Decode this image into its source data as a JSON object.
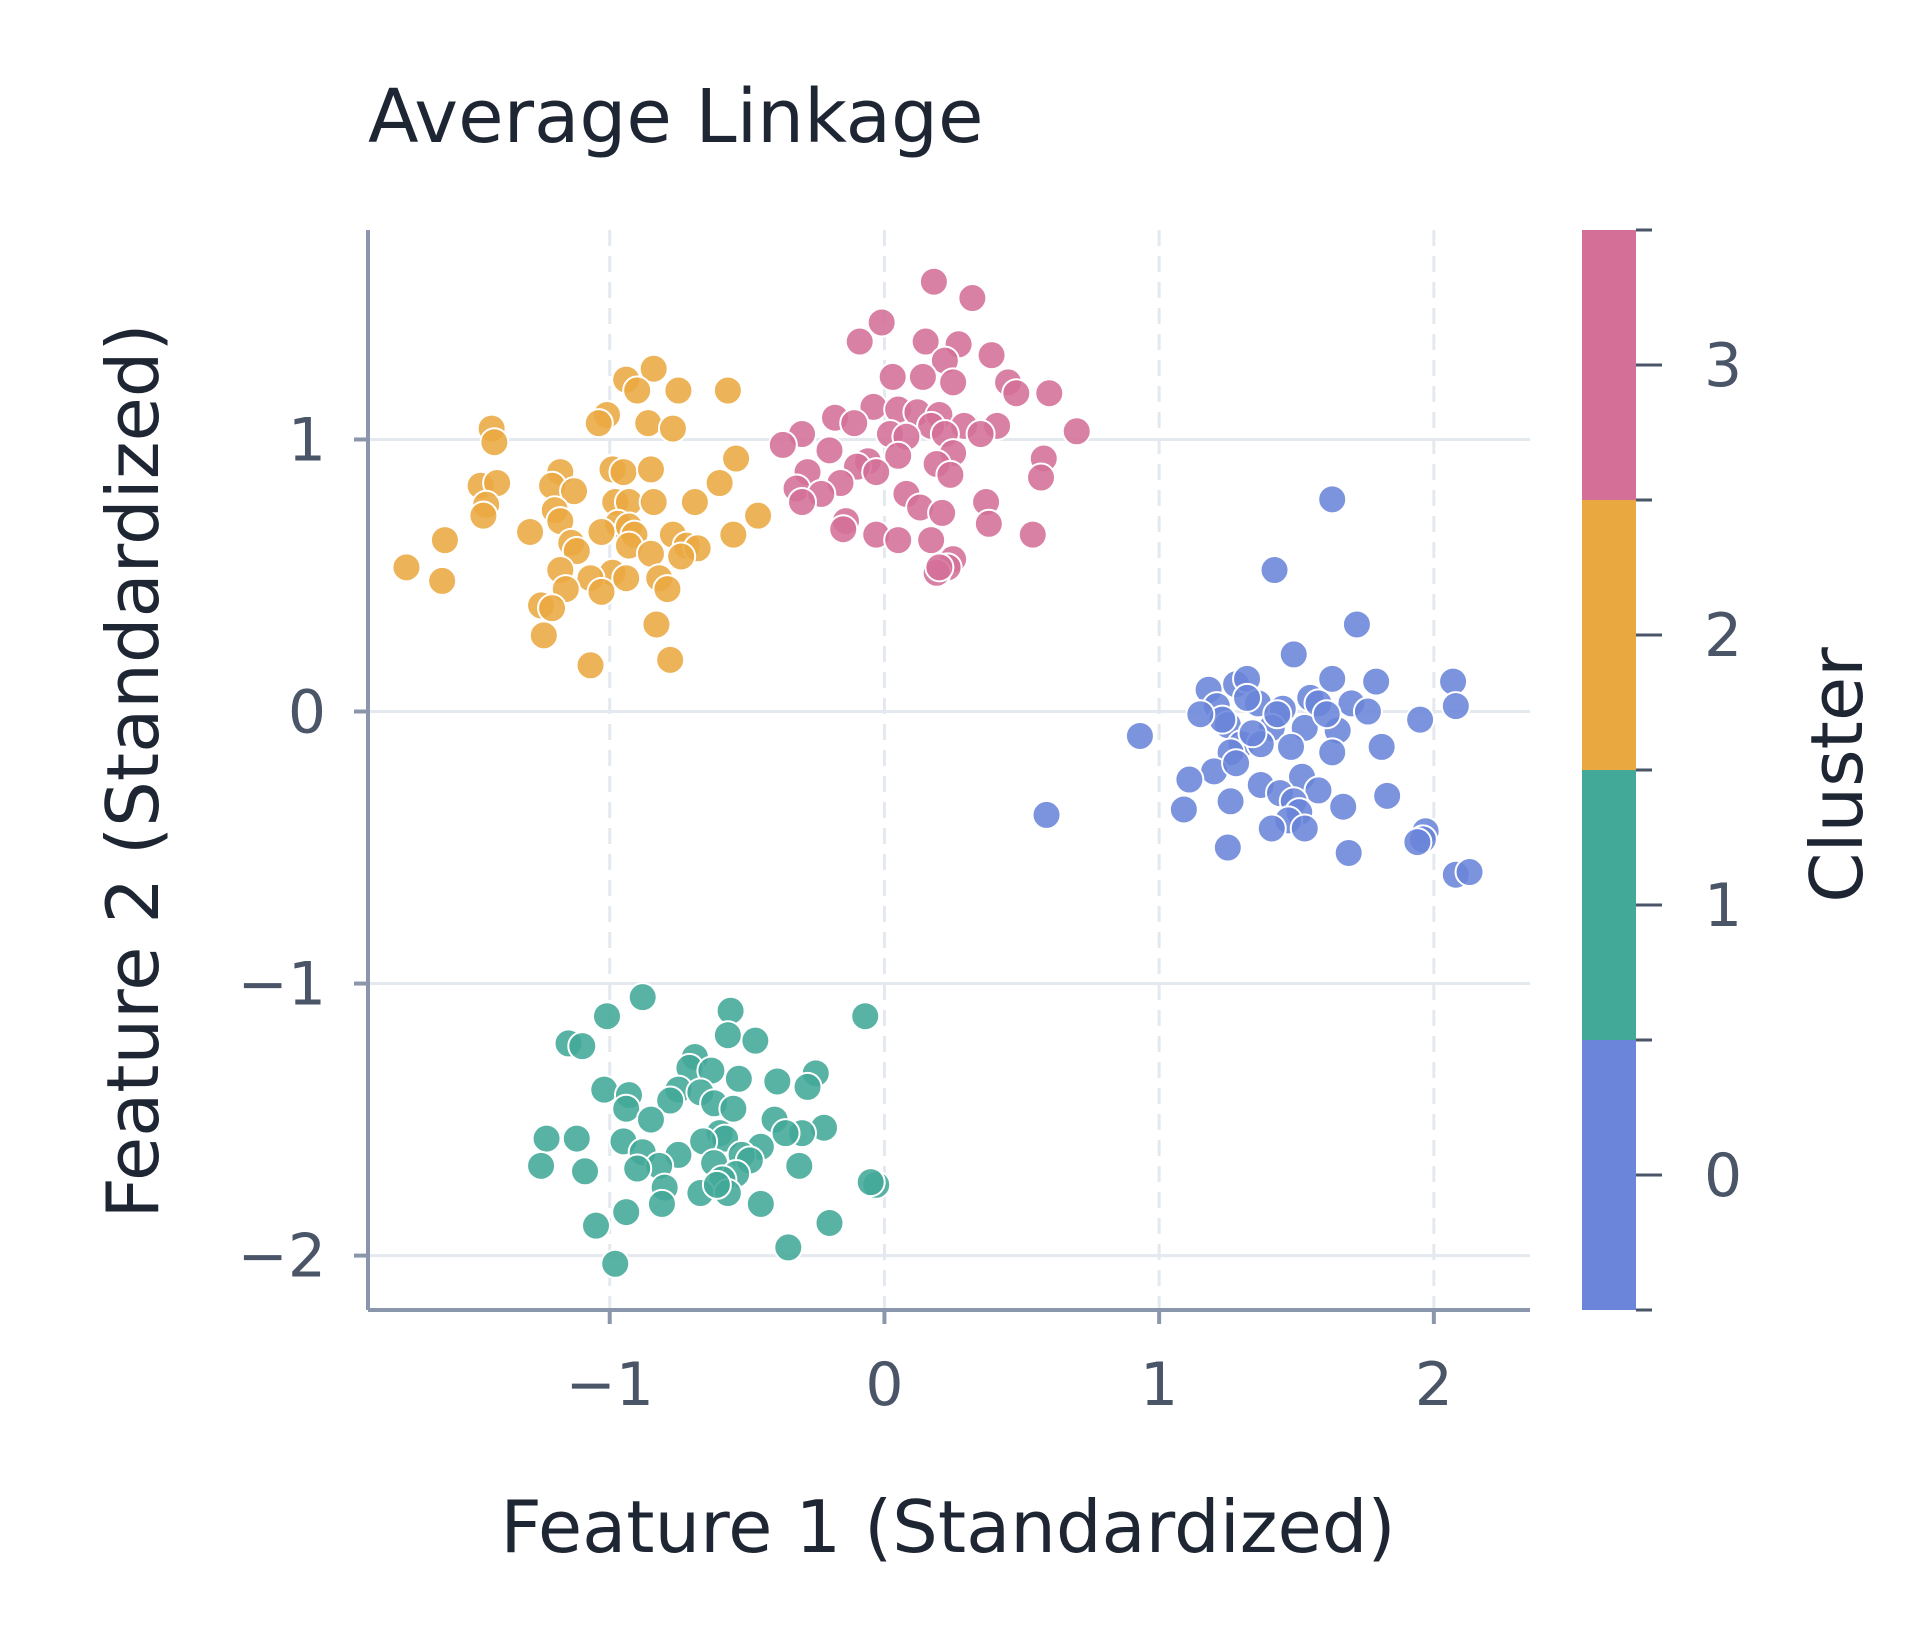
{
  "chart_data": {
    "type": "scatter",
    "title": "Average Linkage",
    "xlabel": "Feature 1 (Standardized)",
    "ylabel": "Feature 2 (Standardized)",
    "xlim": [
      -1.88,
      2.35
    ],
    "ylim": [
      -2.2,
      1.77
    ],
    "x_ticks": [
      -1,
      0,
      1,
      2
    ],
    "x_tick_labels": [
      "−1",
      "0",
      "1",
      "2"
    ],
    "y_ticks": [
      -2,
      -1,
      0,
      1
    ],
    "y_tick_labels": [
      "−2",
      "−1",
      "0",
      "1"
    ],
    "grid": {
      "horizontal": "solid",
      "vertical": "dashed"
    },
    "colorbar": {
      "label": "Cluster",
      "range": [
        -0.5,
        3.5
      ],
      "ticks": [
        0,
        1,
        2,
        3
      ],
      "tick_labels": [
        "0",
        "1",
        "2",
        "3"
      ],
      "colors": [
        "#6a85d9",
        "#42a898",
        "#eaa841",
        "#d46f98"
      ]
    },
    "series": [
      {
        "cluster": 0,
        "color": "#6a85d9",
        "points": [
          [
            1.63,
            0.78
          ],
          [
            1.42,
            0.52
          ],
          [
            1.72,
            0.32
          ],
          [
            1.49,
            0.21
          ],
          [
            1.28,
            0.1
          ],
          [
            1.18,
            0.08
          ],
          [
            1.32,
            0.12
          ],
          [
            1.55,
            0.05
          ],
          [
            1.63,
            0.12
          ],
          [
            1.79,
            0.11
          ],
          [
            2.07,
            0.11
          ],
          [
            2.08,
            0.02
          ],
          [
            1.95,
            -0.03
          ],
          [
            1.21,
            0.02
          ],
          [
            1.36,
            0.03
          ],
          [
            1.45,
            0.01
          ],
          [
            1.58,
            0.03
          ],
          [
            1.7,
            0.03
          ],
          [
            1.76,
            0.0
          ],
          [
            1.25,
            -0.05
          ],
          [
            1.41,
            -0.06
          ],
          [
            1.53,
            -0.06
          ],
          [
            1.65,
            -0.07
          ],
          [
            1.3,
            -0.12
          ],
          [
            1.37,
            -0.12
          ],
          [
            1.48,
            -0.13
          ],
          [
            0.93,
            -0.09
          ],
          [
            1.26,
            -0.15
          ],
          [
            1.81,
            -0.13
          ],
          [
            1.63,
            -0.15
          ],
          [
            1.2,
            -0.22
          ],
          [
            1.28,
            -0.19
          ],
          [
            1.11,
            -0.25
          ],
          [
            1.37,
            -0.27
          ],
          [
            1.52,
            -0.24
          ],
          [
            1.58,
            -0.29
          ],
          [
            1.44,
            -0.3
          ],
          [
            1.49,
            -0.33
          ],
          [
            1.51,
            -0.37
          ],
          [
            1.83,
            -0.31
          ],
          [
            1.67,
            -0.35
          ],
          [
            1.26,
            -0.33
          ],
          [
            1.09,
            -0.36
          ],
          [
            1.47,
            -0.4
          ],
          [
            1.53,
            -0.43
          ],
          [
            1.41,
            -0.43
          ],
          [
            1.97,
            -0.44
          ],
          [
            1.96,
            -0.47
          ],
          [
            1.94,
            -0.48
          ],
          [
            1.25,
            -0.5
          ],
          [
            1.69,
            -0.52
          ],
          [
            2.08,
            -0.6
          ],
          [
            2.13,
            -0.59
          ],
          [
            0.59,
            -0.38
          ],
          [
            1.32,
            0.05
          ],
          [
            1.43,
            -0.01
          ],
          [
            1.61,
            -0.01
          ],
          [
            1.23,
            -0.03
          ],
          [
            1.15,
            -0.01
          ],
          [
            1.34,
            -0.08
          ]
        ]
      },
      {
        "cluster": 1,
        "color": "#42a898",
        "points": [
          [
            -0.88,
            -1.05
          ],
          [
            -1.01,
            -1.12
          ],
          [
            -0.56,
            -1.1
          ],
          [
            -0.07,
            -1.12
          ],
          [
            -0.57,
            -1.19
          ],
          [
            -0.47,
            -1.21
          ],
          [
            -1.15,
            -1.22
          ],
          [
            -1.1,
            -1.23
          ],
          [
            -0.69,
            -1.27
          ],
          [
            -0.71,
            -1.31
          ],
          [
            -0.63,
            -1.32
          ],
          [
            -0.25,
            -1.33
          ],
          [
            -0.53,
            -1.35
          ],
          [
            -0.39,
            -1.36
          ],
          [
            -0.28,
            -1.38
          ],
          [
            -0.75,
            -1.39
          ],
          [
            -1.02,
            -1.39
          ],
          [
            -0.93,
            -1.41
          ],
          [
            -0.67,
            -1.4
          ],
          [
            -0.78,
            -1.43
          ],
          [
            -0.94,
            -1.46
          ],
          [
            -0.62,
            -1.44
          ],
          [
            -0.55,
            -1.46
          ],
          [
            -0.85,
            -1.5
          ],
          [
            -0.4,
            -1.5
          ],
          [
            -0.22,
            -1.53
          ],
          [
            -0.3,
            -1.55
          ],
          [
            -0.36,
            -1.55
          ],
          [
            -0.6,
            -1.55
          ],
          [
            -0.58,
            -1.57
          ],
          [
            -1.23,
            -1.57
          ],
          [
            -1.12,
            -1.57
          ],
          [
            -0.95,
            -1.58
          ],
          [
            -0.66,
            -1.58
          ],
          [
            -0.45,
            -1.6
          ],
          [
            -0.88,
            -1.62
          ],
          [
            -0.75,
            -1.63
          ],
          [
            -0.52,
            -1.63
          ],
          [
            -0.49,
            -1.65
          ],
          [
            -0.62,
            -1.66
          ],
          [
            -0.82,
            -1.67
          ],
          [
            -0.9,
            -1.68
          ],
          [
            -1.25,
            -1.67
          ],
          [
            -1.09,
            -1.69
          ],
          [
            -0.31,
            -1.67
          ],
          [
            -0.54,
            -1.7
          ],
          [
            -0.59,
            -1.72
          ],
          [
            -0.03,
            -1.74
          ],
          [
            -0.05,
            -1.73
          ],
          [
            -0.8,
            -1.75
          ],
          [
            -0.67,
            -1.77
          ],
          [
            -0.57,
            -1.77
          ],
          [
            -0.61,
            -1.74
          ],
          [
            -0.45,
            -1.81
          ],
          [
            -0.81,
            -1.81
          ],
          [
            -0.94,
            -1.84
          ],
          [
            -1.05,
            -1.89
          ],
          [
            -0.2,
            -1.88
          ],
          [
            -0.35,
            -1.97
          ],
          [
            -0.98,
            -2.03
          ]
        ]
      },
      {
        "cluster": 2,
        "color": "#eaa841",
        "points": [
          [
            -0.84,
            1.26
          ],
          [
            -0.94,
            1.22
          ],
          [
            -0.9,
            1.18
          ],
          [
            -0.75,
            1.18
          ],
          [
            -0.57,
            1.18
          ],
          [
            -1.01,
            1.09
          ],
          [
            -1.04,
            1.06
          ],
          [
            -0.86,
            1.06
          ],
          [
            -0.77,
            1.04
          ],
          [
            -1.43,
            1.04
          ],
          [
            -1.42,
            0.99
          ],
          [
            -0.54,
            0.93
          ],
          [
            -1.18,
            0.88
          ],
          [
            -0.99,
            0.89
          ],
          [
            -0.95,
            0.88
          ],
          [
            -0.85,
            0.89
          ],
          [
            -1.47,
            0.83
          ],
          [
            -1.41,
            0.84
          ],
          [
            -1.21,
            0.83
          ],
          [
            -0.6,
            0.84
          ],
          [
            -1.13,
            0.81
          ],
          [
            -0.98,
            0.77
          ],
          [
            -0.93,
            0.77
          ],
          [
            -0.84,
            0.77
          ],
          [
            -0.69,
            0.77
          ],
          [
            -1.45,
            0.76
          ],
          [
            -1.2,
            0.74
          ],
          [
            -1.46,
            0.72
          ],
          [
            -0.46,
            0.72
          ],
          [
            -1.18,
            0.7
          ],
          [
            -0.97,
            0.69
          ],
          [
            -0.93,
            0.68
          ],
          [
            -1.29,
            0.66
          ],
          [
            -1.03,
            0.66
          ],
          [
            -0.91,
            0.65
          ],
          [
            -0.77,
            0.65
          ],
          [
            -0.55,
            0.65
          ],
          [
            -1.6,
            0.63
          ],
          [
            -1.14,
            0.62
          ],
          [
            -0.93,
            0.61
          ],
          [
            -0.72,
            0.61
          ],
          [
            -0.68,
            0.6
          ],
          [
            -1.12,
            0.59
          ],
          [
            -0.85,
            0.58
          ],
          [
            -0.74,
            0.57
          ],
          [
            -1.74,
            0.53
          ],
          [
            -1.18,
            0.52
          ],
          [
            -0.99,
            0.51
          ],
          [
            -1.07,
            0.49
          ],
          [
            -0.94,
            0.49
          ],
          [
            -0.82,
            0.49
          ],
          [
            -1.61,
            0.48
          ],
          [
            -1.16,
            0.45
          ],
          [
            -0.79,
            0.45
          ],
          [
            -1.03,
            0.44
          ],
          [
            -1.25,
            0.39
          ],
          [
            -1.21,
            0.38
          ],
          [
            -0.83,
            0.32
          ],
          [
            -1.24,
            0.28
          ],
          [
            -0.78,
            0.19
          ],
          [
            -1.07,
            0.17
          ]
        ]
      },
      {
        "cluster": 3,
        "color": "#d46f98",
        "points": [
          [
            0.18,
            1.58
          ],
          [
            0.32,
            1.52
          ],
          [
            -0.01,
            1.43
          ],
          [
            -0.09,
            1.36
          ],
          [
            0.15,
            1.36
          ],
          [
            0.27,
            1.35
          ],
          [
            0.39,
            1.31
          ],
          [
            0.22,
            1.29
          ],
          [
            0.03,
            1.23
          ],
          [
            0.14,
            1.23
          ],
          [
            0.25,
            1.21
          ],
          [
            0.45,
            1.21
          ],
          [
            0.48,
            1.17
          ],
          [
            0.6,
            1.17
          ],
          [
            -0.04,
            1.12
          ],
          [
            0.05,
            1.11
          ],
          [
            0.12,
            1.1
          ],
          [
            0.2,
            1.09
          ],
          [
            -0.18,
            1.08
          ],
          [
            -0.11,
            1.06
          ],
          [
            0.17,
            1.05
          ],
          [
            0.29,
            1.05
          ],
          [
            0.41,
            1.05
          ],
          [
            0.02,
            1.02
          ],
          [
            0.08,
            1.01
          ],
          [
            0.22,
            1.02
          ],
          [
            0.35,
            1.02
          ],
          [
            -0.3,
            1.02
          ],
          [
            0.7,
            1.03
          ],
          [
            -0.37,
            0.98
          ],
          [
            -0.2,
            0.96
          ],
          [
            0.25,
            0.95
          ],
          [
            0.58,
            0.93
          ],
          [
            0.05,
            0.94
          ],
          [
            -0.06,
            0.92
          ],
          [
            0.19,
            0.91
          ],
          [
            -0.1,
            0.9
          ],
          [
            -0.03,
            0.88
          ],
          [
            0.24,
            0.87
          ],
          [
            -0.28,
            0.88
          ],
          [
            0.57,
            0.86
          ],
          [
            -0.16,
            0.84
          ],
          [
            -0.32,
            0.82
          ],
          [
            0.08,
            0.8
          ],
          [
            -0.23,
            0.8
          ],
          [
            -0.3,
            0.77
          ],
          [
            0.37,
            0.77
          ],
          [
            0.13,
            0.75
          ],
          [
            0.21,
            0.73
          ],
          [
            -0.14,
            0.7
          ],
          [
            0.38,
            0.69
          ],
          [
            -0.15,
            0.67
          ],
          [
            -0.03,
            0.65
          ],
          [
            0.54,
            0.65
          ],
          [
            0.05,
            0.63
          ],
          [
            0.17,
            0.63
          ],
          [
            0.25,
            0.56
          ],
          [
            0.23,
            0.53
          ],
          [
            0.19,
            0.51
          ],
          [
            0.2,
            0.53
          ]
        ]
      }
    ]
  }
}
